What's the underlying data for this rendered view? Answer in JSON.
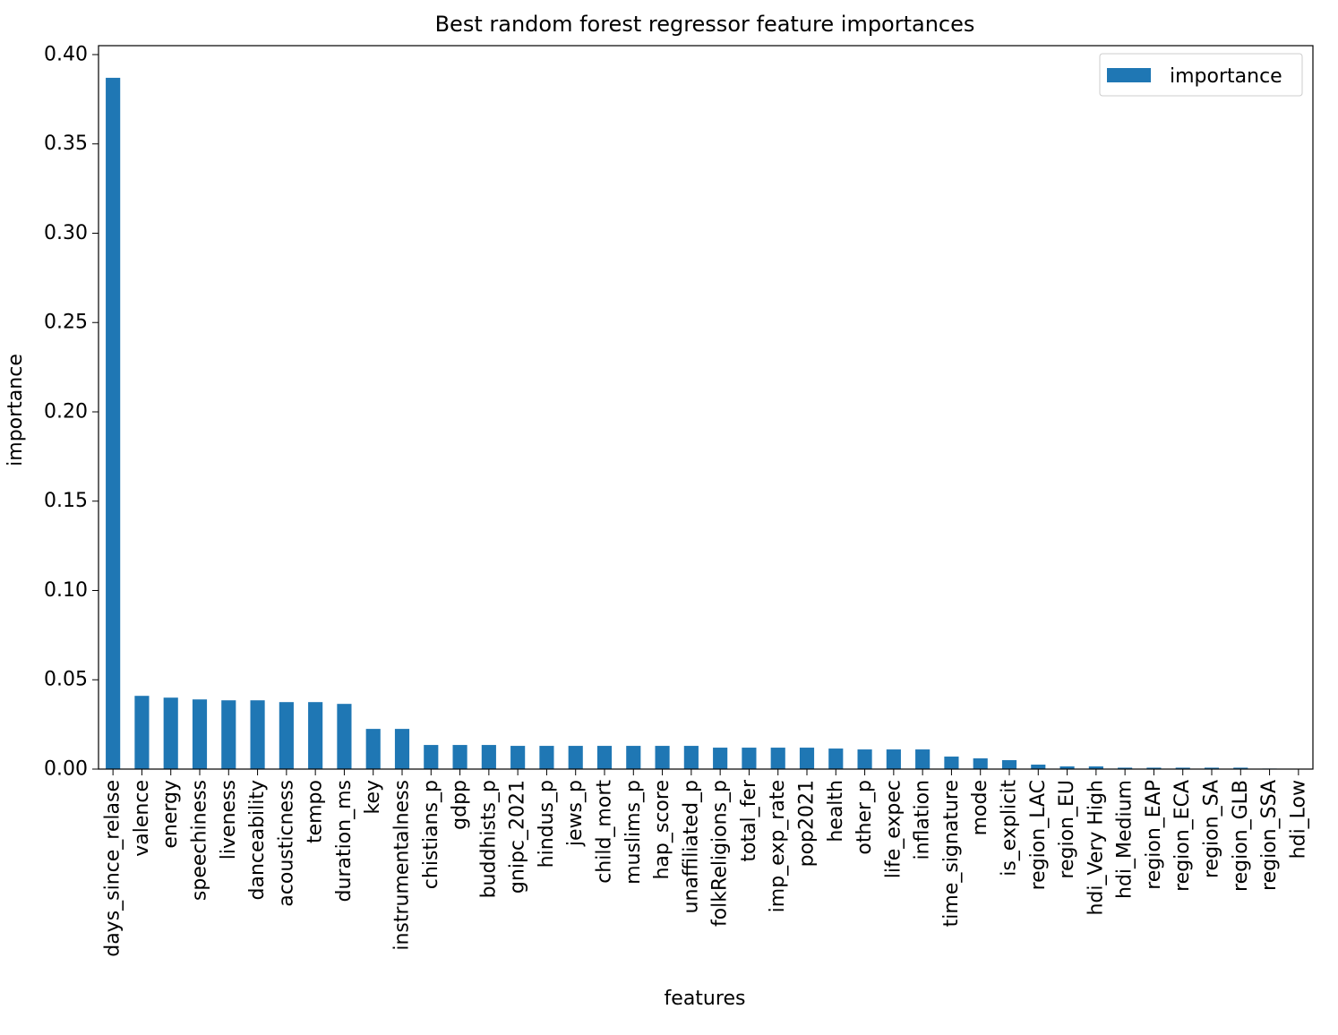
{
  "chart_data": {
    "type": "bar",
    "title": "Best random forest regressor feature importances",
    "xlabel": "features",
    "ylabel": "importance",
    "ylim": [
      0,
      0.405
    ],
    "yticks": [
      "0.00",
      "0.05",
      "0.10",
      "0.15",
      "0.20",
      "0.25",
      "0.30",
      "0.35",
      "0.40"
    ],
    "grid": false,
    "legend": {
      "placement": "top-right",
      "entries": [
        "importance"
      ]
    },
    "bar_color": "#1f77b4",
    "categories": [
      "days_since_relase",
      "valence",
      "energy",
      "speechiness",
      "liveness",
      "danceability",
      "acousticness",
      "tempo",
      "duration_ms",
      "key",
      "instrumentalness",
      "chistians_p",
      "gdpp",
      "buddhists_p",
      "gnipc_2021",
      "hindus_p",
      "jews_p",
      "child_mort",
      "muslims_p",
      "hap_score",
      "unaffiliated_p",
      "folkReligions_p",
      "total_fer",
      "imp_exp_rate",
      "pop2021",
      "health",
      "other_p",
      "life_expec",
      "inflation",
      "time_signature",
      "mode",
      "is_explicit",
      "region_LAC",
      "region_EU",
      "hdi_Very High",
      "hdi_Medium",
      "region_EAP",
      "region_ECA",
      "region_SA",
      "region_GLB",
      "region_SSA",
      "hdi_Low"
    ],
    "series": [
      {
        "name": "importance",
        "values": [
          0.387,
          0.041,
          0.04,
          0.039,
          0.0385,
          0.0385,
          0.0375,
          0.0375,
          0.0365,
          0.0225,
          0.0225,
          0.0135,
          0.0135,
          0.0135,
          0.013,
          0.013,
          0.013,
          0.013,
          0.013,
          0.013,
          0.013,
          0.012,
          0.012,
          0.012,
          0.012,
          0.0115,
          0.011,
          0.011,
          0.011,
          0.007,
          0.006,
          0.005,
          0.0025,
          0.0015,
          0.0015,
          0.0008,
          0.0008,
          0.0008,
          0.0008,
          0.0008,
          0.0003,
          0.0002
        ]
      }
    ]
  }
}
